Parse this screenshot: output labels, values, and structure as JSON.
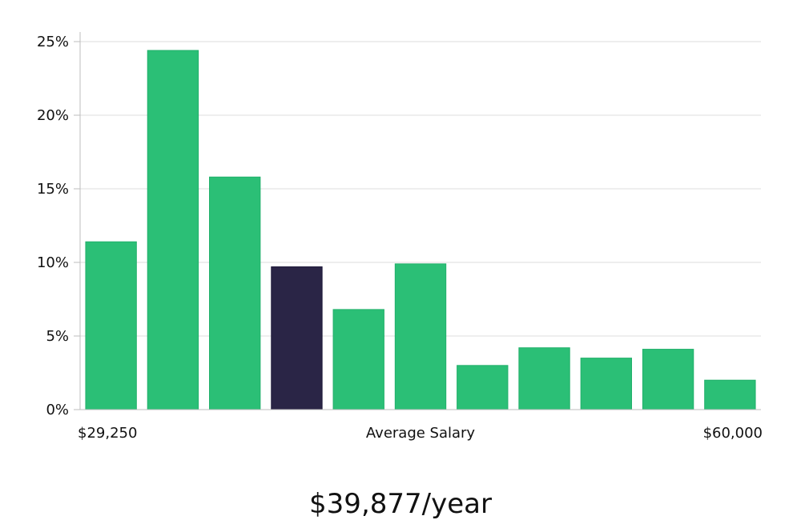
{
  "chart_data": {
    "type": "bar",
    "x_start_label": "$29,250",
    "xlabel": "Average Salary",
    "x_end_label": "$60,000",
    "ylim": [
      0,
      25
    ],
    "y_ticks": [
      0,
      5,
      10,
      15,
      20,
      25
    ],
    "y_tick_labels": [
      "0%",
      "5%",
      "10%",
      "15%",
      "20%",
      "25%"
    ],
    "values": [
      11.4,
      24.4,
      15.8,
      9.7,
      6.8,
      9.9,
      3.0,
      4.2,
      3.5,
      4.1,
      2.0
    ],
    "highlight_index": 3,
    "colors": {
      "bar": "#2bbf76",
      "highlight": "#2a2546",
      "grid": "#dcdcdc",
      "axis": "#bdbdbd"
    },
    "grid": true
  },
  "summary": {
    "salary": "$39,877/year"
  }
}
